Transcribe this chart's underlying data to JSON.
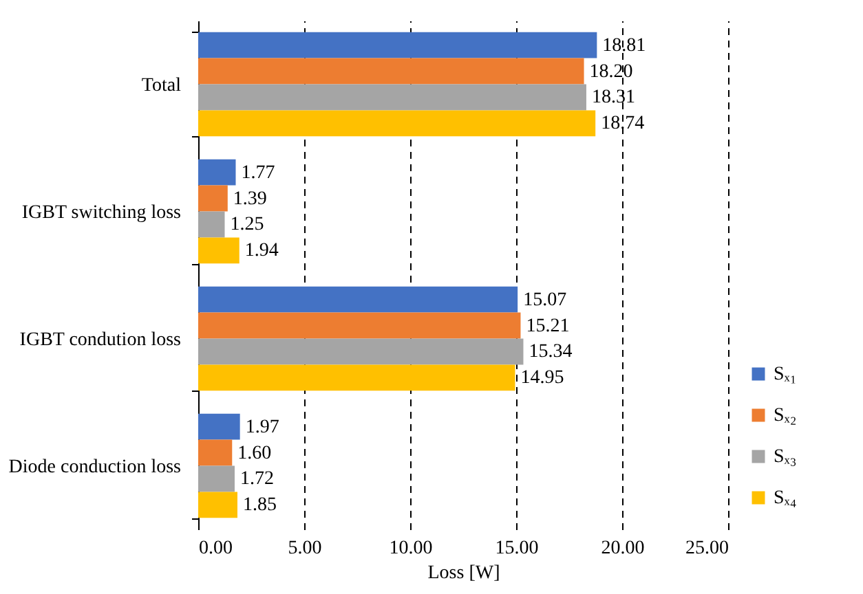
{
  "chart_data": {
    "type": "bar",
    "orientation": "horizontal",
    "xlabel": "Loss [W]",
    "categories": [
      "Total",
      "IGBT switching loss",
      "IGBT condution loss",
      "Diode conduction loss"
    ],
    "series": [
      {
        "name": "Sₓ₁",
        "color": "#4472c4",
        "values": [
          18.81,
          1.77,
          15.07,
          1.97
        ],
        "value_labels": [
          "18.81",
          "1.77",
          "15.07",
          "1.97"
        ]
      },
      {
        "name": "Sₓ₂",
        "color": "#ed7d31",
        "values": [
          18.2,
          1.39,
          15.21,
          1.6
        ],
        "value_labels": [
          "18.20",
          "1.39",
          "15.21",
          "1.60"
        ]
      },
      {
        "name": "Sₓ₃",
        "color": "#a5a5a5",
        "values": [
          18.31,
          1.25,
          15.34,
          1.72
        ],
        "value_labels": [
          "18.31",
          "1.25",
          "15.34",
          "1.72"
        ]
      },
      {
        "name": "Sₓ₄",
        "color": "#ffc000",
        "values": [
          18.74,
          1.94,
          14.95,
          1.85
        ],
        "value_labels": [
          "18.74",
          "1.94",
          "14.95",
          "1.85"
        ]
      }
    ],
    "xlim": [
      0,
      25
    ],
    "xticks": [
      {
        "value": 0,
        "label": "0.00"
      },
      {
        "value": 5,
        "label": "5.00"
      },
      {
        "value": 10,
        "label": "10.00"
      },
      {
        "value": 15,
        "label": "15.00"
      },
      {
        "value": 20,
        "label": "20.00"
      },
      {
        "value": 25,
        "label": "25.00"
      }
    ],
    "grid": true,
    "legend": "bottom right"
  }
}
